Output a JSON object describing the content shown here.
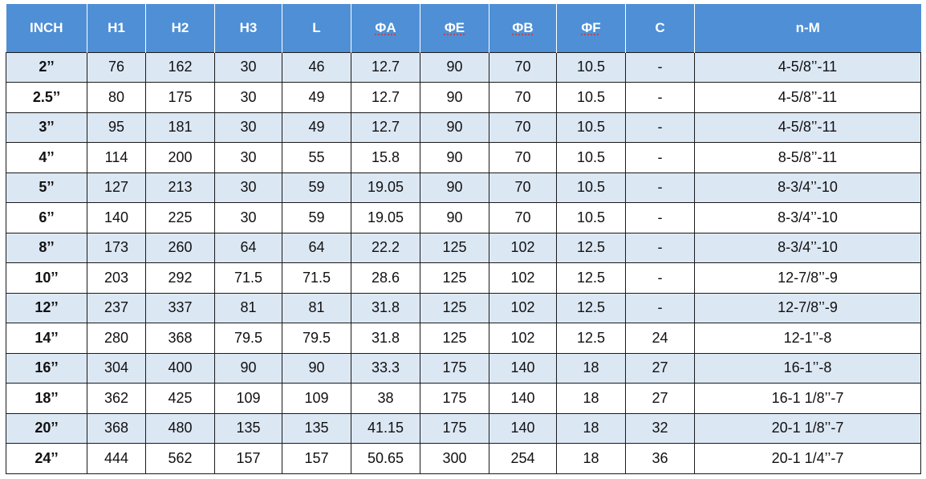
{
  "headers": [
    "INCH",
    "H1",
    "H2",
    "H3",
    "L",
    "ΦA",
    "ΦE",
    "ΦB",
    "ΦF",
    "C",
    "n-M"
  ],
  "rows": [
    [
      "2’’",
      "76",
      "162",
      "30",
      "46",
      "12.7",
      "90",
      "70",
      "10.5",
      "-",
      "4-5/8’’-11"
    ],
    [
      "2.5’’",
      "80",
      "175",
      "30",
      "49",
      "12.7",
      "90",
      "70",
      "10.5",
      "-",
      "4-5/8’’-11"
    ],
    [
      "3’’",
      "95",
      "181",
      "30",
      "49",
      "12.7",
      "90",
      "70",
      "10.5",
      "-",
      "4-5/8’’-11"
    ],
    [
      "4’’",
      "114",
      "200",
      "30",
      "55",
      "15.8",
      "90",
      "70",
      "10.5",
      "-",
      "8-5/8’’-11"
    ],
    [
      "5’’",
      "127",
      "213",
      "30",
      "59",
      "19.05",
      "90",
      "70",
      "10.5",
      "-",
      "8-3/4’’-10"
    ],
    [
      "6’’",
      "140",
      "225",
      "30",
      "59",
      "19.05",
      "90",
      "70",
      "10.5",
      "-",
      "8-3/4’’-10"
    ],
    [
      "8’’",
      "173",
      "260",
      "64",
      "64",
      "22.2",
      "125",
      "102",
      "12.5",
      "-",
      "8-3/4’’-10"
    ],
    [
      "10’’",
      "203",
      "292",
      "71.5",
      "71.5",
      "28.6",
      "125",
      "102",
      "12.5",
      "-",
      "12-7/8’’-9"
    ],
    [
      "12’’",
      "237",
      "337",
      "81",
      "81",
      "31.8",
      "125",
      "102",
      "12.5",
      "-",
      "12-7/8’’-9"
    ],
    [
      "14’’",
      "280",
      "368",
      "79.5",
      "79.5",
      "31.8",
      "125",
      "102",
      "12.5",
      "24",
      "12-1’’-8"
    ],
    [
      "16’’",
      "304",
      "400",
      "90",
      "90",
      "33.3",
      "175",
      "140",
      "18",
      "27",
      "16-1’’-8"
    ],
    [
      "18’’",
      "362",
      "425",
      "109",
      "109",
      "38",
      "175",
      "140",
      "18",
      "27",
      "16-1 1/8’’-7"
    ],
    [
      "20’’",
      "368",
      "480",
      "135",
      "135",
      "41.15",
      "175",
      "140",
      "18",
      "32",
      "20-1 1/8’’-7"
    ],
    [
      "24’’",
      "444",
      "562",
      "157",
      "157",
      "50.65",
      "300",
      "254",
      "18",
      "36",
      "20-1 1/4’’-7"
    ]
  ],
  "colors": {
    "header_bg": "#4f8fd5",
    "header_text": "#ffffff",
    "row_shade": "#dce7f4",
    "row_plain": "#ffffff",
    "grid": "#1a1a1a"
  }
}
